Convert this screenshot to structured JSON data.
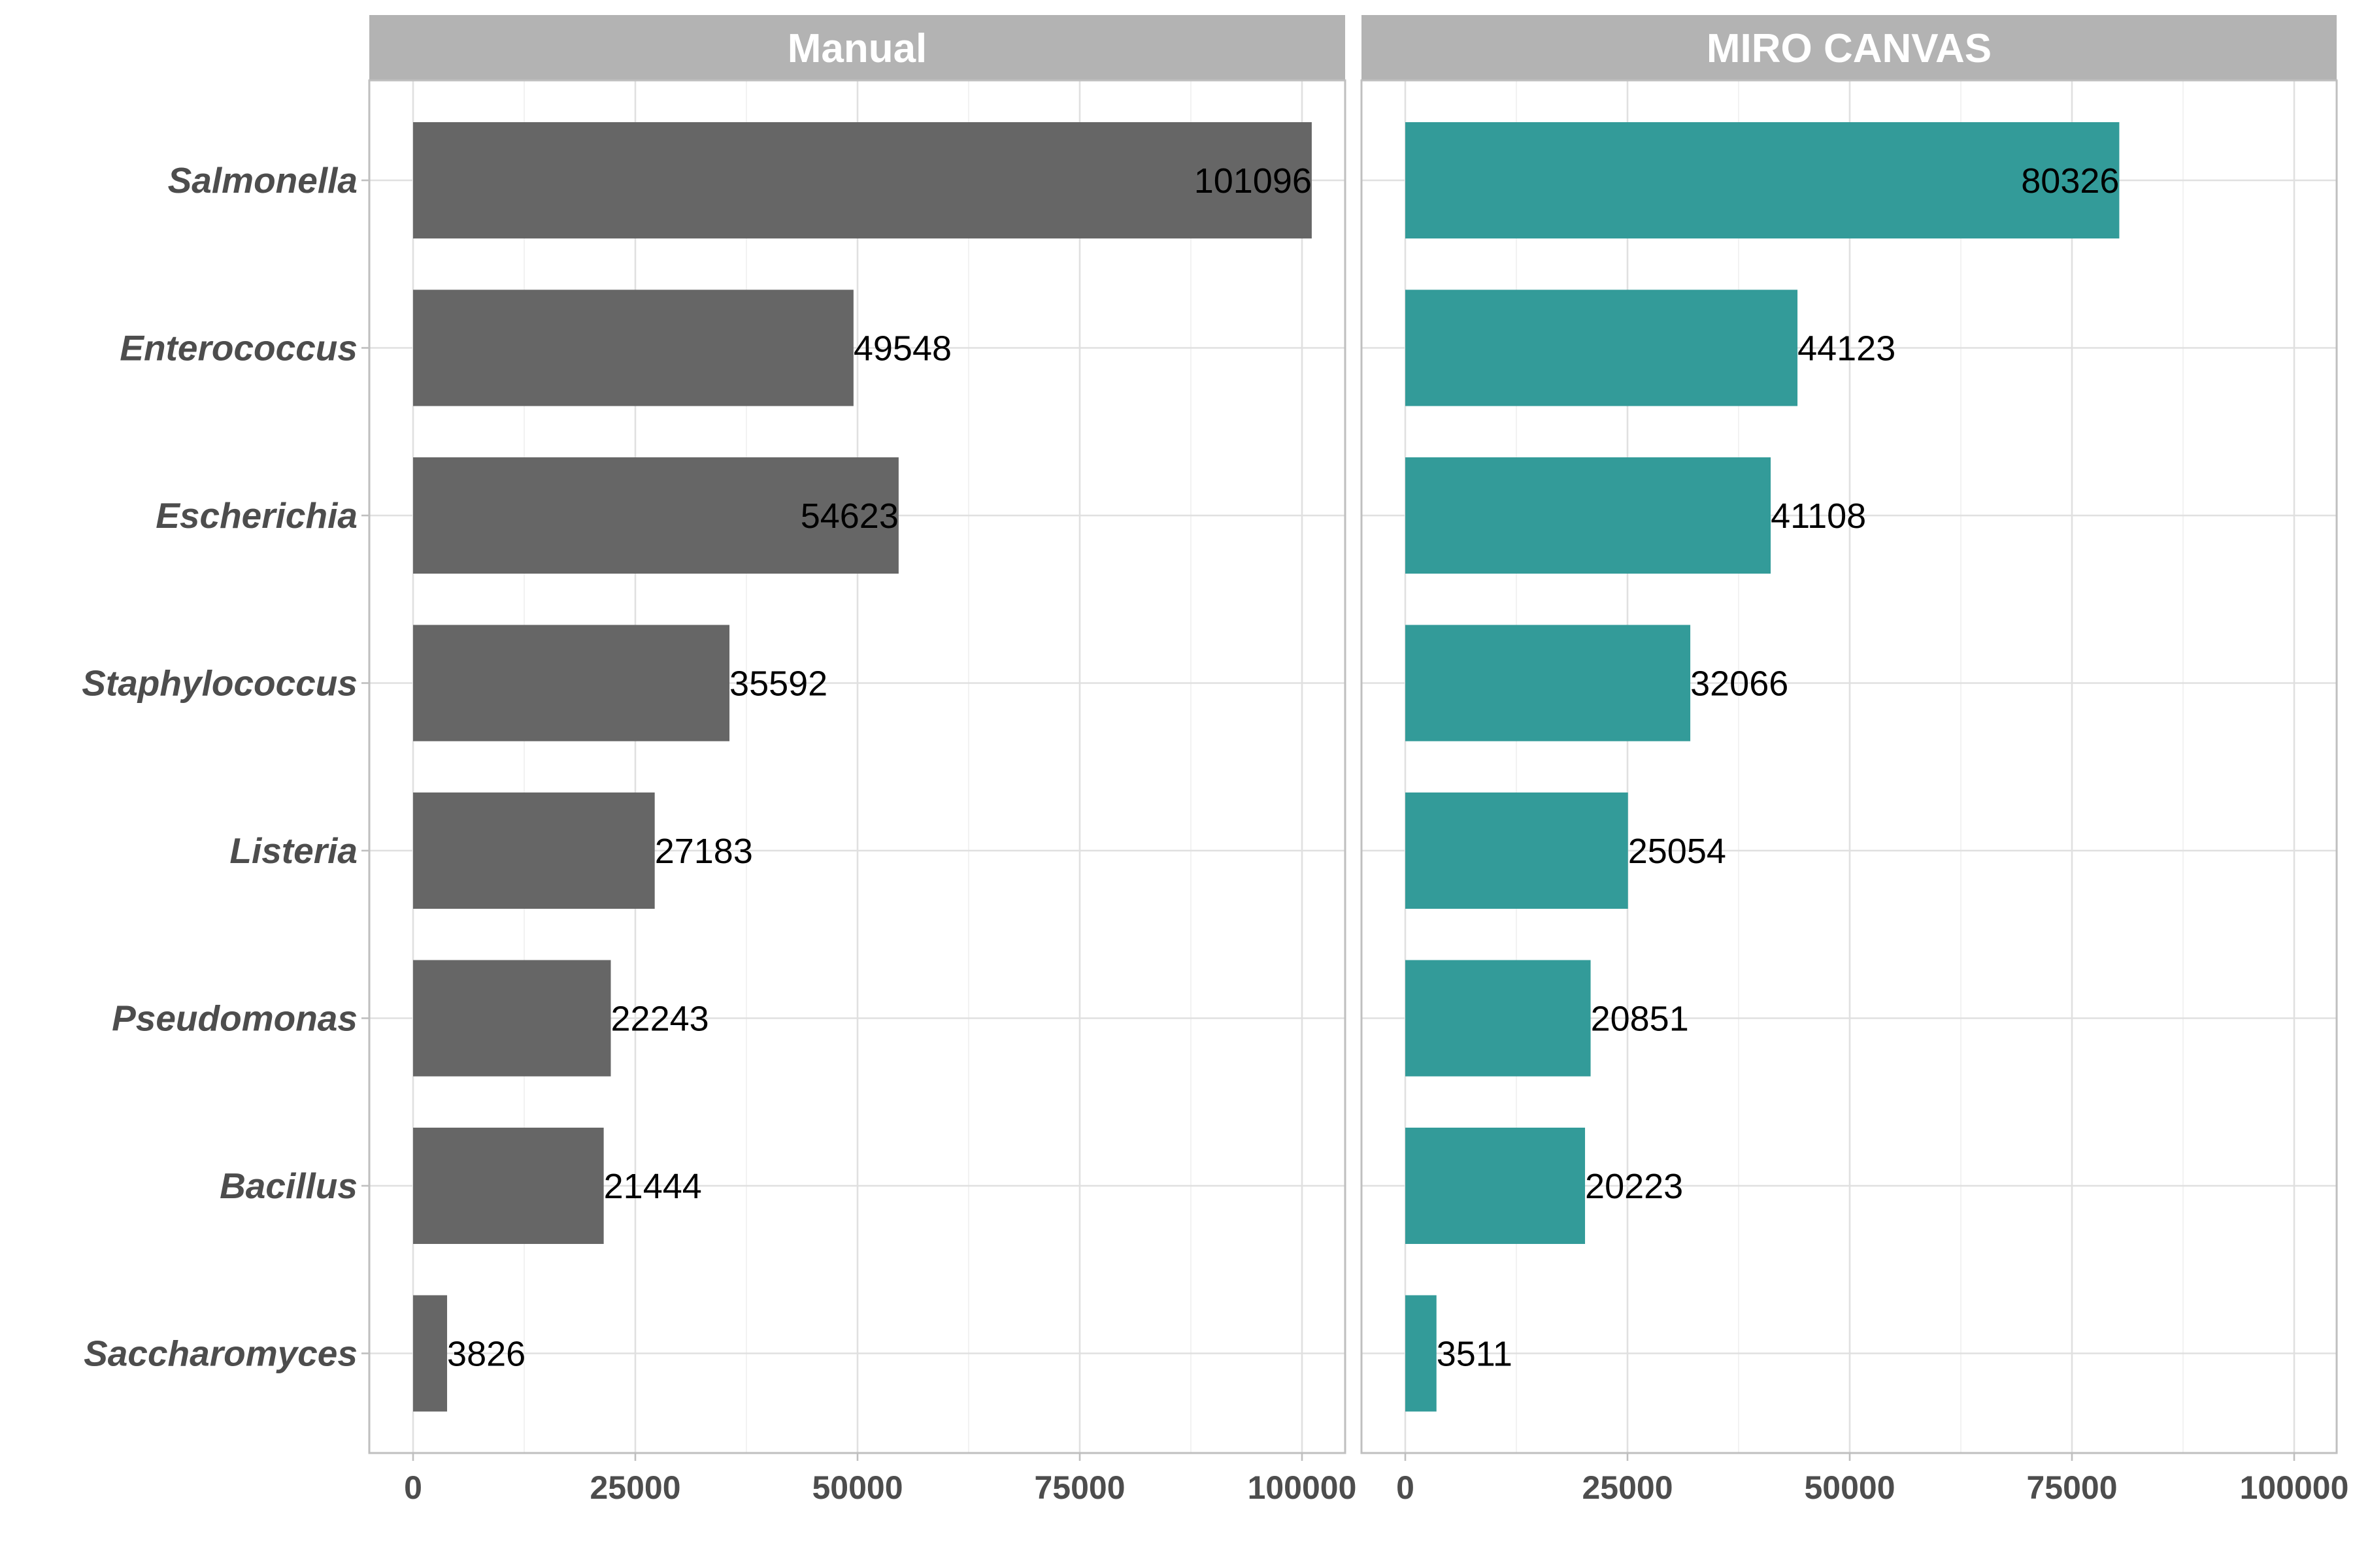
{
  "chart_data": {
    "type": "bar",
    "orientation": "horizontal",
    "categories": [
      "Salmonella",
      "Enterococcus",
      "Escherichia",
      "Staphylococcus",
      "Listeria",
      "Pseudomonas",
      "Bacillus",
      "Saccharomyces"
    ],
    "panels": [
      {
        "title": "Manual",
        "color": "#666666",
        "values": [
          101096,
          49548,
          54623,
          35592,
          27183,
          22243,
          21444,
          3826
        ],
        "label_inside": [
          true,
          false,
          true,
          false,
          false,
          false,
          false,
          false
        ]
      },
      {
        "title": "MIRO CANVAS",
        "color": "#339b99",
        "values": [
          80326,
          44123,
          41108,
          32066,
          25054,
          20851,
          20223,
          3511
        ],
        "label_inside": [
          true,
          false,
          false,
          false,
          false,
          false,
          false,
          false
        ]
      }
    ],
    "xlim": [
      0,
      105000
    ],
    "xticks": [
      0,
      25000,
      50000,
      75000,
      100000
    ],
    "xlabel": "",
    "ylabel": "",
    "grid": true,
    "legend": "none"
  }
}
